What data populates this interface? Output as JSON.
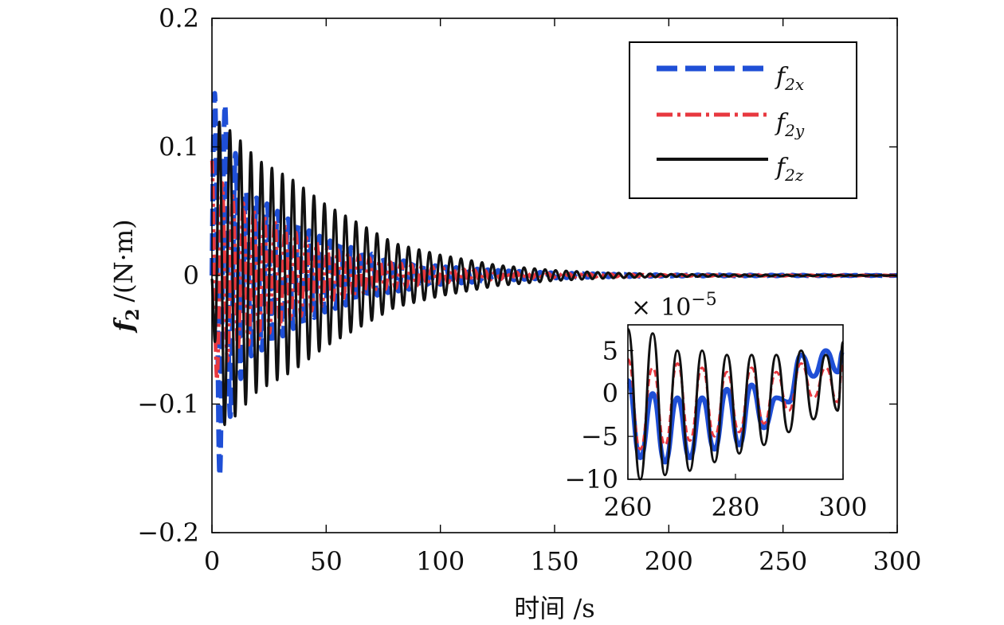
{
  "chart_data": [
    {
      "type": "line",
      "xlabel": "时间 /s",
      "ylabel_symbol": "f",
      "ylabel_sub": "2",
      "ylabel_unit": "/(N·m)",
      "xlim": [
        0,
        300
      ],
      "ylim": [
        -0.2,
        0.2
      ],
      "xticks": [
        "0",
        "50",
        "100",
        "150",
        "200",
        "250",
        "300"
      ],
      "yticks": [
        "−0.2",
        "−0.1",
        "0",
        "0.1",
        "0.2"
      ],
      "grid": false,
      "legend_position": "top-right",
      "series": [
        {
          "name": "f2x",
          "label_base": "f",
          "label_sub": "2x",
          "color": "#1f4fd6",
          "style": "dashed",
          "envelope": [
            [
              0,
              0.13
            ],
            [
              3,
              0.16
            ],
            [
              8,
              0.11
            ],
            [
              15,
              0.065
            ],
            [
              25,
              0.055
            ],
            [
              35,
              0.042
            ],
            [
              50,
              0.028
            ],
            [
              75,
              0.014
            ],
            [
              100,
              0.007
            ],
            [
              125,
              0.004
            ],
            [
              150,
              0.002
            ],
            [
              175,
              0.001
            ],
            [
              200,
              0.0005
            ],
            [
              300,
              0.0001
            ]
          ],
          "period": 4.6
        },
        {
          "name": "f2y",
          "label_base": "f",
          "label_sub": "2y",
          "color": "#e8383f",
          "style": "dash-dot",
          "envelope": [
            [
              0,
              0.09
            ],
            [
              5,
              0.07
            ],
            [
              10,
              0.06
            ],
            [
              20,
              0.05
            ],
            [
              35,
              0.035
            ],
            [
              50,
              0.022
            ],
            [
              75,
              0.011
            ],
            [
              100,
              0.006
            ],
            [
              125,
              0.003
            ],
            [
              150,
              0.0015
            ],
            [
              200,
              0.0004
            ],
            [
              300,
              0.0001
            ]
          ],
          "period": 4.6
        },
        {
          "name": "f2z",
          "label_base": "f",
          "label_sub": "2z",
          "color": "#111111",
          "style": "solid",
          "envelope": [
            [
              0,
              0.01
            ],
            [
              3,
              0.12
            ],
            [
              10,
              0.11
            ],
            [
              20,
              0.09
            ],
            [
              35,
              0.075
            ],
            [
              50,
              0.055
            ],
            [
              65,
              0.04
            ],
            [
              80,
              0.025
            ],
            [
              100,
              0.016
            ],
            [
              125,
              0.008
            ],
            [
              150,
              0.004
            ],
            [
              175,
              0.002
            ],
            [
              200,
              0.001
            ],
            [
              300,
              0.0001
            ]
          ],
          "period": 4.6
        }
      ]
    },
    {
      "type": "line",
      "inset": true,
      "xlim": [
        260,
        300
      ],
      "ylim": [
        -10,
        8
      ],
      "xticks": [
        "260",
        "280",
        "300"
      ],
      "yticks": [
        "5",
        "0",
        "−5",
        "−10"
      ],
      "scale_label_prefix": "×",
      "scale_label_base": "10",
      "scale_label_exp": "−5",
      "series": [
        {
          "name": "f2x",
          "color": "#1f4fd6",
          "style": "solid-thick",
          "points": [
            [
              260,
              1.5
            ],
            [
              262.3,
              -7.5
            ],
            [
              264.6,
              0
            ],
            [
              266.9,
              -8
            ],
            [
              269.2,
              -0.5
            ],
            [
              271.5,
              -7.5
            ],
            [
              273.8,
              -0.5
            ],
            [
              276.1,
              -6.5
            ],
            [
              278.4,
              0.5
            ],
            [
              280.7,
              -6
            ],
            [
              283,
              1
            ],
            [
              285.3,
              -4
            ],
            [
              287.6,
              -0.5
            ],
            [
              289.9,
              -1
            ],
            [
              292.2,
              4.5
            ],
            [
              294.5,
              2
            ],
            [
              296.8,
              5
            ],
            [
              299,
              2.5
            ],
            [
              300,
              5
            ]
          ]
        },
        {
          "name": "f2y",
          "color": "#e8383f",
          "style": "dashed",
          "points": [
            [
              260,
              4
            ],
            [
              262.3,
              -6.5
            ],
            [
              264.6,
              3
            ],
            [
              266.9,
              -6
            ],
            [
              269.2,
              3.5
            ],
            [
              271.5,
              -5.5
            ],
            [
              273.8,
              3
            ],
            [
              276.1,
              -5
            ],
            [
              278.4,
              2.5
            ],
            [
              280.7,
              -4.5
            ],
            [
              283,
              3
            ],
            [
              285.3,
              -3.5
            ],
            [
              287.6,
              2.5
            ],
            [
              289.9,
              -2
            ],
            [
              292.2,
              3.5
            ],
            [
              294.5,
              -0.5
            ],
            [
              296.8,
              3
            ],
            [
              299,
              -1
            ],
            [
              300,
              3.5
            ]
          ]
        },
        {
          "name": "f2z",
          "color": "#111111",
          "style": "solid",
          "points": [
            [
              260,
              7.5
            ],
            [
              262.3,
              -10
            ],
            [
              264.6,
              7
            ],
            [
              266.9,
              -9.5
            ],
            [
              269.2,
              5
            ],
            [
              271.5,
              -9
            ],
            [
              273.8,
              5
            ],
            [
              276.1,
              -8
            ],
            [
              278.4,
              4.5
            ],
            [
              280.7,
              -7
            ],
            [
              283,
              4.5
            ],
            [
              285.3,
              -6
            ],
            [
              287.6,
              4.5
            ],
            [
              289.9,
              -4.5
            ],
            [
              292.2,
              5
            ],
            [
              294.5,
              -3
            ],
            [
              296.8,
              4.5
            ],
            [
              299,
              -2
            ],
            [
              300,
              6
            ]
          ]
        }
      ]
    }
  ]
}
